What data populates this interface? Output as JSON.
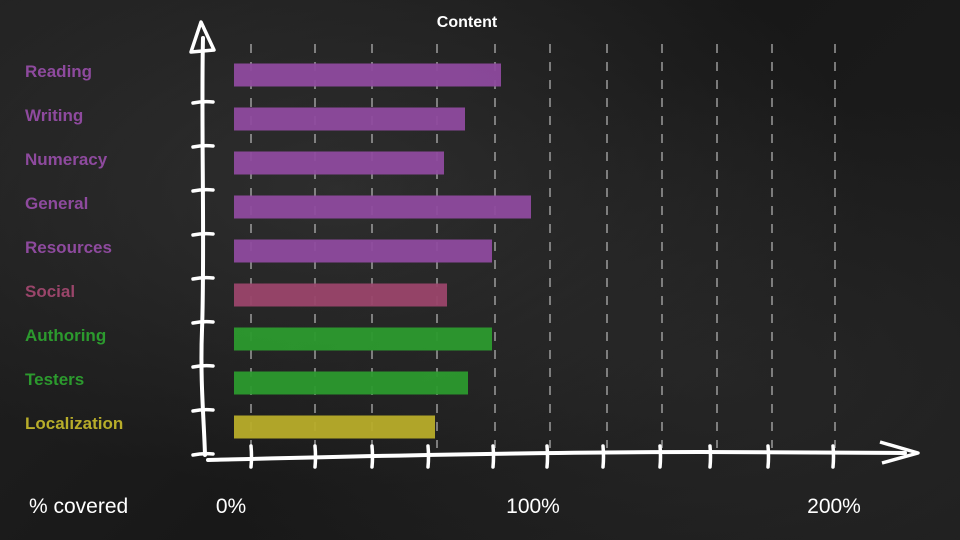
{
  "chart_data": {
    "type": "bar",
    "orientation": "horizontal",
    "title": "Content",
    "xlabel": "% covered",
    "ylabel": "",
    "xlim": [
      0,
      220
    ],
    "x_ticks": [
      0,
      100,
      200
    ],
    "x_tick_labels": [
      "0%",
      "100%",
      "200%"
    ],
    "grid": "vertical-dashed",
    "legend": "none",
    "categories": [
      "Reading",
      "Writing",
      "Numeracy",
      "General",
      "Resources",
      "Social",
      "Authoring",
      "Testers",
      "Localization"
    ],
    "values": [
      89,
      77,
      70,
      99,
      86,
      71,
      86,
      78,
      67
    ],
    "colors": [
      "#8e4a9e",
      "#8e4a9e",
      "#8e4a9e",
      "#8e4a9e",
      "#8e4a9e",
      "#9a456a",
      "#2c9a2e",
      "#2c9a2e",
      "#b8ad2a"
    ]
  }
}
